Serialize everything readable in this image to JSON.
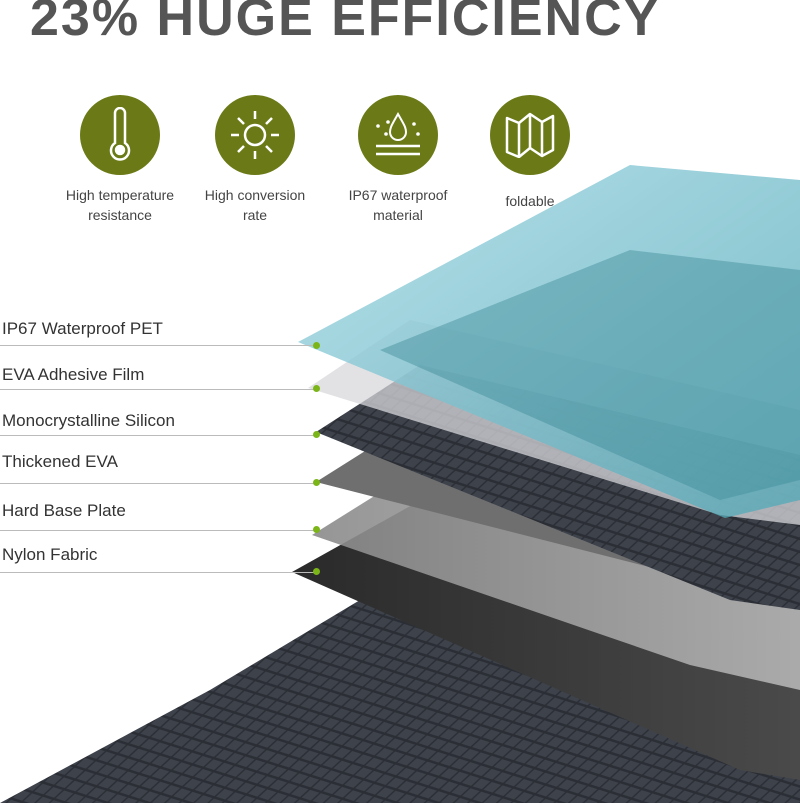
{
  "title": "23% HUGE EFFICIENCY",
  "accent_color": "#6b7a17",
  "features": [
    {
      "icon": "thermometer-icon",
      "label_line1": "High temperature",
      "label_line2": "resistance"
    },
    {
      "icon": "sun-icon",
      "label_line1": "High conversion",
      "label_line2": "rate"
    },
    {
      "icon": "water-drop-icon",
      "label_line1": "IP67 waterproof",
      "label_line2": "material"
    },
    {
      "icon": "folding-map-icon",
      "label_line1": "foldable",
      "label_line2": ""
    }
  ],
  "layers": [
    "IP67 Waterproof PET",
    "EVA Adhesive Film",
    "Monocrystalline Silicon",
    "Thickened EVA",
    "Hard Base Plate",
    "Nylon Fabric"
  ]
}
